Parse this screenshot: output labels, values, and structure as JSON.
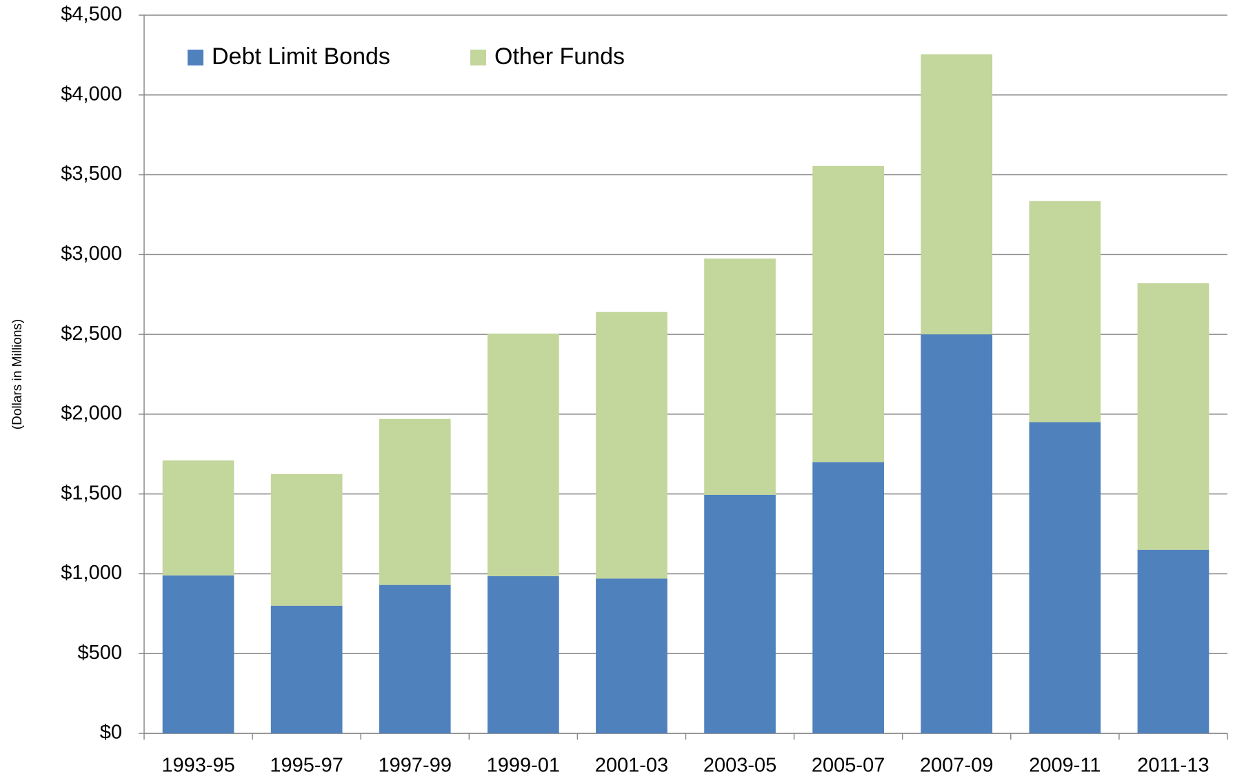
{
  "chart_data": {
    "type": "stacked_bar",
    "y_label": "(Dollars in Millions)",
    "categories": [
      "1993-95",
      "1995-97",
      "1997-99",
      "1999-01",
      "2001-03",
      "2003-05",
      "2005-07",
      "2007-09",
      "2009-11",
      "2011-13"
    ],
    "series": [
      {
        "name": "Debt Limit Bonds",
        "color": "#4f81bd",
        "values": [
          990,
          800,
          930,
          985,
          970,
          1495,
          1700,
          2500,
          1950,
          1150
        ]
      },
      {
        "name": "Other Funds",
        "color": "#c3d69b",
        "values": [
          720,
          825,
          1040,
          1520,
          1670,
          1480,
          1855,
          1755,
          1385,
          1670
        ]
      }
    ],
    "ylim": [
      0,
      4500
    ],
    "yticks": [
      {
        "value": 0,
        "label": "$0"
      },
      {
        "value": 500,
        "label": "$500"
      },
      {
        "value": 1000,
        "label": "$1,000"
      },
      {
        "value": 1500,
        "label": "$1,500"
      },
      {
        "value": 2000,
        "label": "$2,000"
      },
      {
        "value": 2500,
        "label": "$2,500"
      },
      {
        "value": 3000,
        "label": "$3,000"
      },
      {
        "value": 3500,
        "label": "$3,500"
      },
      {
        "value": 4000,
        "label": "$4,000"
      },
      {
        "value": 4500,
        "label": "$4,500"
      }
    ],
    "grid": true,
    "legend": "top-left"
  }
}
